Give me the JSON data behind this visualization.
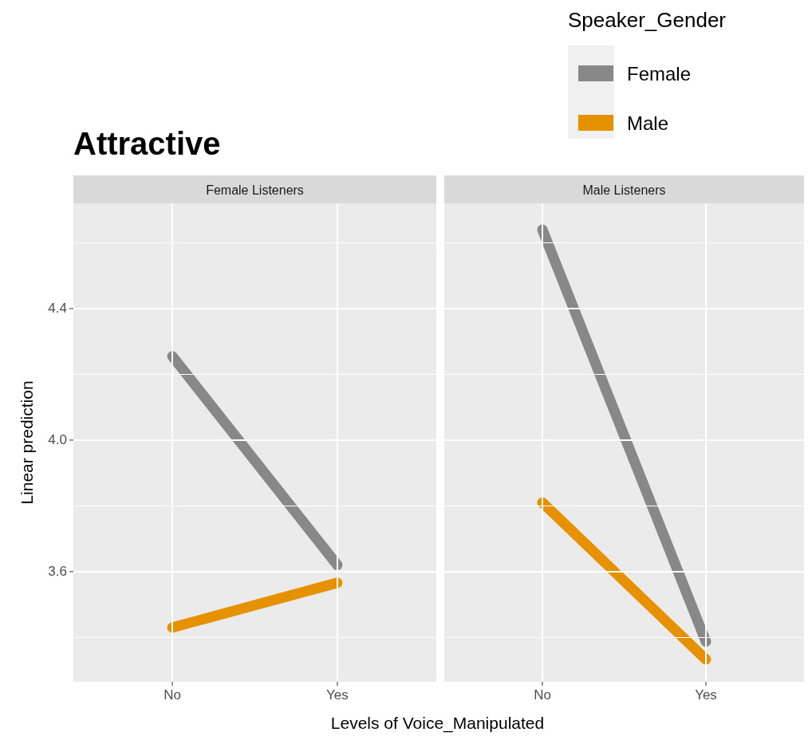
{
  "chart_data": [
    {
      "type": "line",
      "title": "Attractive",
      "subtitle": "Female Listeners",
      "xlabel": "Levels of Voice_Manipulated",
      "ylabel": "Linear prediction",
      "categories": [
        "No",
        "Yes"
      ],
      "series": [
        {
          "color": "#888888",
          "values": [
            4.255,
            3.62
          ]
        },
        {
          "color": "#e69100",
          "values": [
            3.43,
            3.566
          ]
        }
      ],
      "ylim": [
        3.265,
        4.72
      ],
      "yticks": [
        {
          "value": 3.4,
          "label": null
        },
        3.6,
        {
          "value": 3.8,
          "label": null
        },
        {
          "value": 4,
          "label": "4.0"
        },
        {
          "value": 4.2,
          "label": null
        },
        4.4,
        {
          "value": 4.6,
          "label": null
        }
      ],
      "grid": true,
      "legend": false,
      "marker": "none",
      "line_style": "solid"
    },
    {
      "type": "line",
      "subtitle": "Male Listeners",
      "legend_title": "Speaker_Gender",
      "categories": [
        "No",
        "Yes"
      ],
      "series": [
        {
          "name": "Female",
          "color": "#888888",
          "values": [
            4.64,
            3.387
          ]
        },
        {
          "name": "Male",
          "color": "#e69100",
          "values": [
            3.81,
            3.333
          ]
        }
      ],
      "ylim": [
        3.265,
        4.72
      ],
      "yticks": [
        {
          "value": 3.4,
          "label": null
        },
        3.6,
        {
          "value": 3.8,
          "label": null
        },
        4,
        {
          "value": 4.2,
          "label": null
        },
        4.4,
        {
          "value": 4.6,
          "label": null
        }
      ],
      "grid": true,
      "legend": "top right",
      "tick_labels": "x",
      "marker": "none",
      "line_style": "solid"
    }
  ]
}
